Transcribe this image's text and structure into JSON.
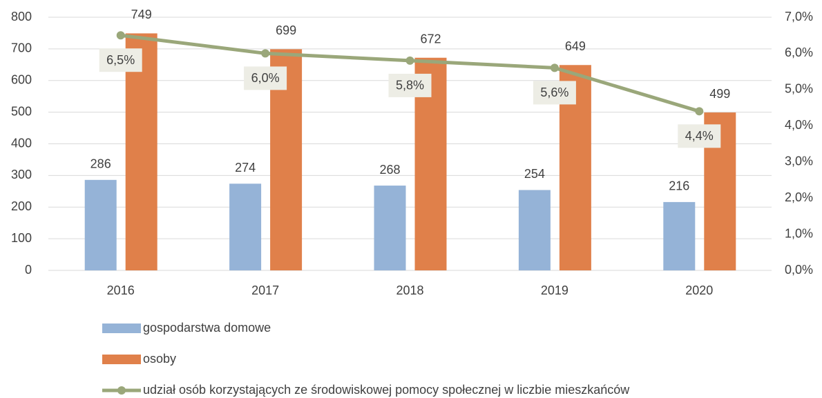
{
  "chart_data": {
    "type": "bar",
    "categories": [
      "2016",
      "2017",
      "2018",
      "2019",
      "2020"
    ],
    "series": [
      {
        "name": "gospodarstwa domowe",
        "color": "#95b3d7",
        "values": [
          286,
          274,
          268,
          254,
          216
        ]
      },
      {
        "name": "osoby",
        "color": "#e0804a",
        "values": [
          749,
          699,
          672,
          649,
          499
        ]
      },
      {
        "name": "udział osób korzystających ze środowiskowej pomocy społecznej w liczbie mieszkańców",
        "color": "#9aa77a",
        "type": "line",
        "axis": "y2",
        "values": [
          6.5,
          6.0,
          5.8,
          5.6,
          4.4
        ],
        "value_labels": [
          "6,5%",
          "6,0%",
          "5,8%",
          "5,6%",
          "4,4%"
        ]
      }
    ],
    "ylim": [
      0,
      800
    ],
    "yticks": [
      0,
      100,
      200,
      300,
      400,
      500,
      600,
      700,
      800
    ],
    "y2lim": [
      0,
      7
    ],
    "y2ticks": [
      {
        "value": 0,
        "label": "0,0%"
      },
      {
        "value": 1,
        "label": "1,0%"
      },
      {
        "value": 2,
        "label": "2,0%"
      },
      {
        "value": 3,
        "label": "3,0%"
      },
      {
        "value": 4,
        "label": "4,0%"
      },
      {
        "value": 5,
        "label": "5,0%"
      },
      {
        "value": 6,
        "label": "6,0%"
      },
      {
        "value": 7,
        "label": "7,0%"
      }
    ],
    "grid": true,
    "legend": "bottom"
  }
}
